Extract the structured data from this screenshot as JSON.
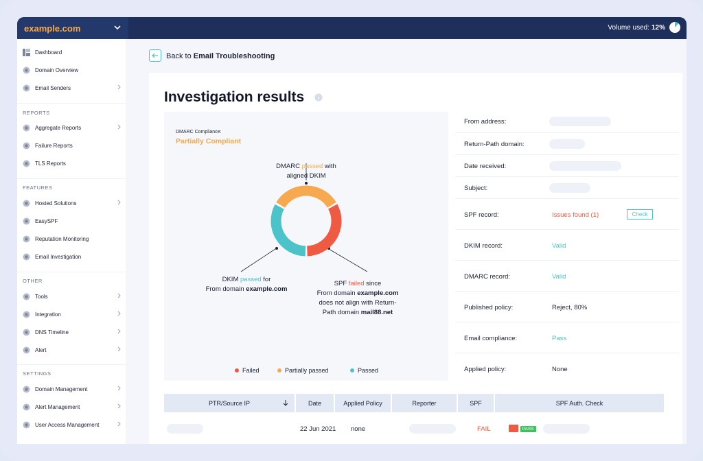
{
  "header": {
    "domain": "example.com",
    "volume_label": "Volume used:",
    "volume_value": "12%",
    "volume_fraction": 0.12
  },
  "sidebar": {
    "items_top": [
      {
        "label": "Dashboard",
        "icon": "dashboard-icon"
      },
      {
        "label": "Domain Overview",
        "icon": "globe-icon"
      },
      {
        "label": "Email Senders",
        "icon": "senders-icon"
      }
    ],
    "reports_heading": "REPORTS",
    "items_reports": [
      {
        "label": "Aggregate Reports",
        "icon": "aggregate-icon"
      },
      {
        "label": "Failure Reports",
        "icon": "failure-icon"
      },
      {
        "label": "TLS Reports",
        "icon": "tls-icon"
      }
    ],
    "features_heading": "FEATURES",
    "items_features": [
      {
        "label": "Hosted Solutions",
        "icon": "cloud-icon"
      },
      {
        "label": "EasySPF",
        "icon": "easyspf-icon"
      },
      {
        "label": "Reputation Monitoring",
        "icon": "reputation-icon"
      },
      {
        "label": "Email Investigation",
        "icon": "investigation-icon"
      }
    ],
    "other_heading": "OTHER",
    "items_other": [
      {
        "label": "Tools",
        "icon": "tools-icon"
      },
      {
        "label": "Integration",
        "icon": "integration-icon"
      },
      {
        "label": "DNS Timeline",
        "icon": "timeline-icon"
      },
      {
        "label": "Alert",
        "icon": "bell-icon"
      }
    ],
    "settings_heading": "SETTINGS",
    "items_settings": [
      {
        "label": "Domain Management",
        "icon": "domain-gear-icon"
      },
      {
        "label": "Alert Management",
        "icon": "alert-gear-icon"
      },
      {
        "label": "User Access Management",
        "icon": "users-icon"
      }
    ]
  },
  "nav": {
    "back_prefix": "Back to",
    "back_target": "Email Troubleshooting"
  },
  "main": {
    "title": "Investigation results",
    "compliance_label": "DMARC Compliance:",
    "compliance_value": "Partially Compliant",
    "dmarc_note": {
      "a": "DMARC ",
      "b": "passed",
      "c": " with",
      "d": "aligned DKIM"
    },
    "dkim_note": {
      "a": "DKIM ",
      "b": "passed",
      "c": " for",
      "d": "From domain ",
      "e": "example.com"
    },
    "spf_note": {
      "a": "SPF ",
      "b": "failed",
      "c": " since",
      "d": "From domain ",
      "e": "example.com",
      "f": "does not align with Return-",
      "g": "Path domain ",
      "h": "mail88.net"
    },
    "legend": [
      "Failed",
      "Partially passed",
      "Passed"
    ],
    "colors": {
      "failed": "#ef5a43",
      "partial": "#f6a94f",
      "passed": "#4cc3c9"
    },
    "donut_segments": [
      {
        "name": "Partially passed",
        "fraction": 0.333
      },
      {
        "name": "Failed",
        "fraction": 0.333
      },
      {
        "name": "Passed",
        "fraction": 0.333
      }
    ]
  },
  "details": {
    "from_address": "From address:",
    "return_path": "Return-Path domain:",
    "date_received": "Date received:",
    "subject": "Subject:",
    "spf_record": "SPF record:",
    "spf_value": "Issues found (1)",
    "check_button": "Check",
    "dkim_record": "DKIM record:",
    "dkim_value": "Valid",
    "dmarc_record": "DMARC record:",
    "dmarc_value": "Valid",
    "published_policy": "Published policy:",
    "published_value": "Reject, 80%",
    "email_compliance": "Email compliance:",
    "compliance_value": "Pass",
    "applied_policy": "Applied policy:",
    "applied_value": "None"
  },
  "table": {
    "headers": [
      "PTR/Source IP",
      "Date",
      "Applied Policy",
      "Reporter",
      "SPF",
      "SPF Auth. Check"
    ],
    "row": {
      "date": "22 Jun 2021",
      "policy": "none",
      "spf": "FAIL",
      "pass_badge": "PASS"
    }
  }
}
